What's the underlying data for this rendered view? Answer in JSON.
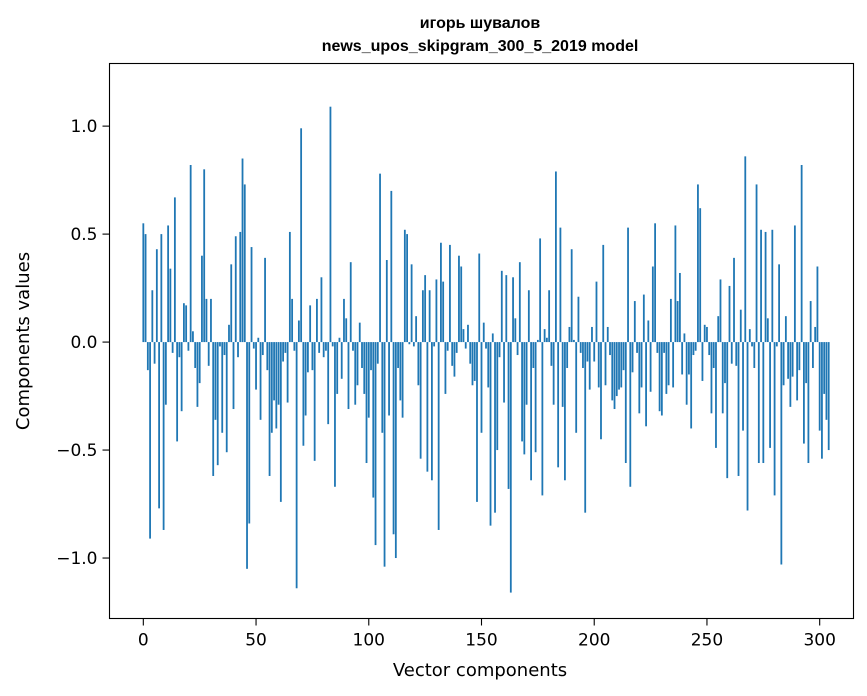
{
  "chart_data": {
    "type": "bar",
    "title": "игорь шувалов",
    "subtitle": "news_upos_skipgram_300_5_2019 model",
    "xlabel": "Vector components",
    "ylabel": "Components values",
    "xlim": [
      -15,
      315
    ],
    "ylim": [
      -1.28,
      1.29
    ],
    "xticks": [
      0,
      50,
      100,
      150,
      200,
      250,
      300
    ],
    "xtick_labels": [
      "0",
      "50",
      "100",
      "150",
      "200",
      "250",
      "300"
    ],
    "yticks": [
      -1.0,
      -0.5,
      0.0,
      0.5,
      1.0
    ],
    "ytick_labels": [
      "−1.0",
      "−0.5",
      "0.0",
      "0.5",
      "1.0"
    ],
    "grid": false,
    "bar_color": "#1f77b4",
    "series": [
      {
        "values": [
          0.55,
          0.5,
          -0.13,
          -0.91,
          0.24,
          -0.1,
          0.43,
          -0.77,
          0.5,
          -0.87,
          -0.29,
          0.54,
          0.34,
          -0.05,
          0.67,
          -0.46,
          -0.07,
          -0.32,
          0.18,
          0.17,
          -0.04,
          0.82,
          0.05,
          -0.12,
          -0.3,
          -0.19,
          0.4,
          0.8,
          0.2,
          -0.11,
          0.2,
          -0.62,
          -0.36,
          -0.57,
          -0.02,
          -0.42,
          -0.06,
          -0.51,
          0.08,
          0.36,
          -0.31,
          0.49,
          -0.07,
          0.51,
          0.85,
          0.73,
          -1.05,
          -0.84,
          0.44,
          -0.03,
          -0.22,
          0.02,
          -0.36,
          -0.06,
          0.39,
          -0.13,
          -0.62,
          -0.42,
          -0.27,
          -0.4,
          -0.29,
          -0.74,
          -0.09,
          -0.05,
          -0.28,
          0.51,
          0.2,
          -0.04,
          -1.14,
          0.1,
          0.99,
          -0.48,
          -0.34,
          -0.14,
          0.17,
          -0.13,
          -0.55,
          0.2,
          -0.05,
          0.3,
          -0.07,
          -0.04,
          -0.38,
          1.09,
          -0.02,
          -0.67,
          -0.24,
          0.02,
          -0.17,
          0.2,
          0.11,
          -0.31,
          0.37,
          -0.04,
          -0.29,
          -0.2,
          0.09,
          -0.12,
          -0.24,
          -0.56,
          -0.35,
          -0.13,
          -0.72,
          -0.94,
          -0.1,
          0.78,
          -0.42,
          -1.04,
          0.38,
          -0.34,
          0.7,
          -0.89,
          -1.0,
          -0.12,
          -0.27,
          -0.35,
          0.52,
          0.5,
          -0.01,
          0.36,
          -0.02,
          0.12,
          -0.2,
          -0.54,
          0.24,
          0.31,
          -0.6,
          0.24,
          -0.64,
          -0.02,
          0.29,
          -0.87,
          0.46,
          0.28,
          -0.24,
          -0.04,
          0.45,
          -0.11,
          -0.16,
          -0.05,
          0.4,
          0.35,
          0.06,
          -0.03,
          0.08,
          -0.1,
          -0.2,
          -0.18,
          -0.74,
          0.41,
          -0.42,
          0.09,
          -0.03,
          -0.21,
          -0.85,
          0.04,
          -0.79,
          -0.5,
          -0.07,
          0.33,
          -0.28,
          0.31,
          -0.68,
          -1.16,
          0.3,
          0.11,
          -0.06,
          0.37,
          -0.46,
          -0.52,
          -0.29,
          0.24,
          -0.64,
          -0.12,
          -0.51,
          0.01,
          0.48,
          -0.71,
          0.06,
          0.02,
          0.24,
          -0.11,
          -0.29,
          0.79,
          -0.58,
          0.53,
          -0.3,
          -0.64,
          -0.12,
          0.07,
          0.43,
          0.01,
          -0.42,
          0.21,
          -0.05,
          -0.12,
          -0.79,
          -0.09,
          -0.22,
          0.07,
          -0.09,
          0.28,
          -0.21,
          -0.45,
          0.45,
          -0.2,
          0.07,
          -0.06,
          -0.27,
          -0.31,
          -0.25,
          -0.22,
          -0.21,
          -0.13,
          -0.56,
          0.53,
          -0.67,
          -0.14,
          0.19,
          -0.05,
          -0.33,
          -0.21,
          0.22,
          -0.39,
          0.1,
          -0.23,
          0.35,
          0.55,
          -0.05,
          -0.32,
          -0.34,
          -0.05,
          -0.24,
          -0.2,
          0.2,
          -0.21,
          0.54,
          0.19,
          0.32,
          -0.15,
          0.04,
          -0.29,
          -0.15,
          -0.4,
          -0.06,
          -0.04,
          0.73,
          0.62,
          -0.18,
          0.08,
          0.07,
          -0.06,
          -0.33,
          -0.12,
          -0.49,
          0.12,
          0.29,
          -0.33,
          -0.19,
          -0.63,
          0.26,
          -0.1,
          0.39,
          -0.11,
          -0.62,
          0.15,
          -0.41,
          0.86,
          -0.78,
          0.06,
          -0.02,
          -0.12,
          0.73,
          -0.56,
          0.52,
          -0.56,
          0.51,
          0.11,
          -0.49,
          0.52,
          -0.71,
          -0.02,
          0.36,
          -1.03,
          -0.2,
          0.12,
          -0.17,
          -0.3,
          -0.16,
          0.54,
          -0.27,
          -0.13,
          0.82,
          -0.47,
          -0.19,
          -0.56,
          0.19,
          -0.12,
          0.07,
          0.35,
          -0.41,
          -0.54,
          -0.24,
          -0.36,
          -0.5
        ]
      }
    ]
  }
}
